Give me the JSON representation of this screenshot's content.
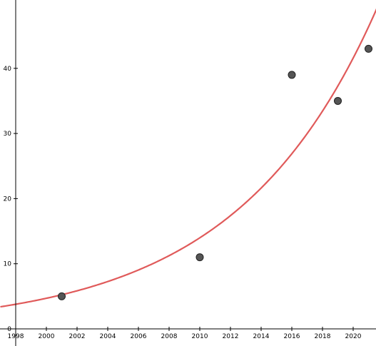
{
  "chart_data": {
    "type": "scatter",
    "title": "",
    "xlabel": "",
    "ylabel": "",
    "xlim": [
      1998,
      2022.5
    ],
    "ylim": [
      0,
      50.5
    ],
    "x_ticks": [
      1998,
      2000,
      2002,
      2004,
      2006,
      2008,
      2010,
      2012,
      2014,
      2016,
      2018,
      2020
    ],
    "y_ticks": [
      0,
      10,
      20,
      30,
      40
    ],
    "x_tick_labels": [
      "1998",
      "2000",
      "2002",
      "2004",
      "2006",
      "2008",
      "2010",
      "2012",
      "2014",
      "2016",
      "2018",
      "2020"
    ],
    "y_tick_labels": [
      "0",
      "10",
      "20",
      "30",
      "40"
    ],
    "grid": false,
    "points": [
      {
        "x": 2001,
        "y": 5.0
      },
      {
        "x": 2010,
        "y": 11.0
      },
      {
        "x": 2016,
        "y": 39.0
      },
      {
        "x": 2019,
        "y": 35.0
      },
      {
        "x": 2021,
        "y": 43.0
      }
    ],
    "fit_curve": {
      "type": "exponential",
      "a": 4.7,
      "b": 0.109,
      "x0": 2000,
      "color": "#e05a5a"
    },
    "point_color": "#555555"
  }
}
